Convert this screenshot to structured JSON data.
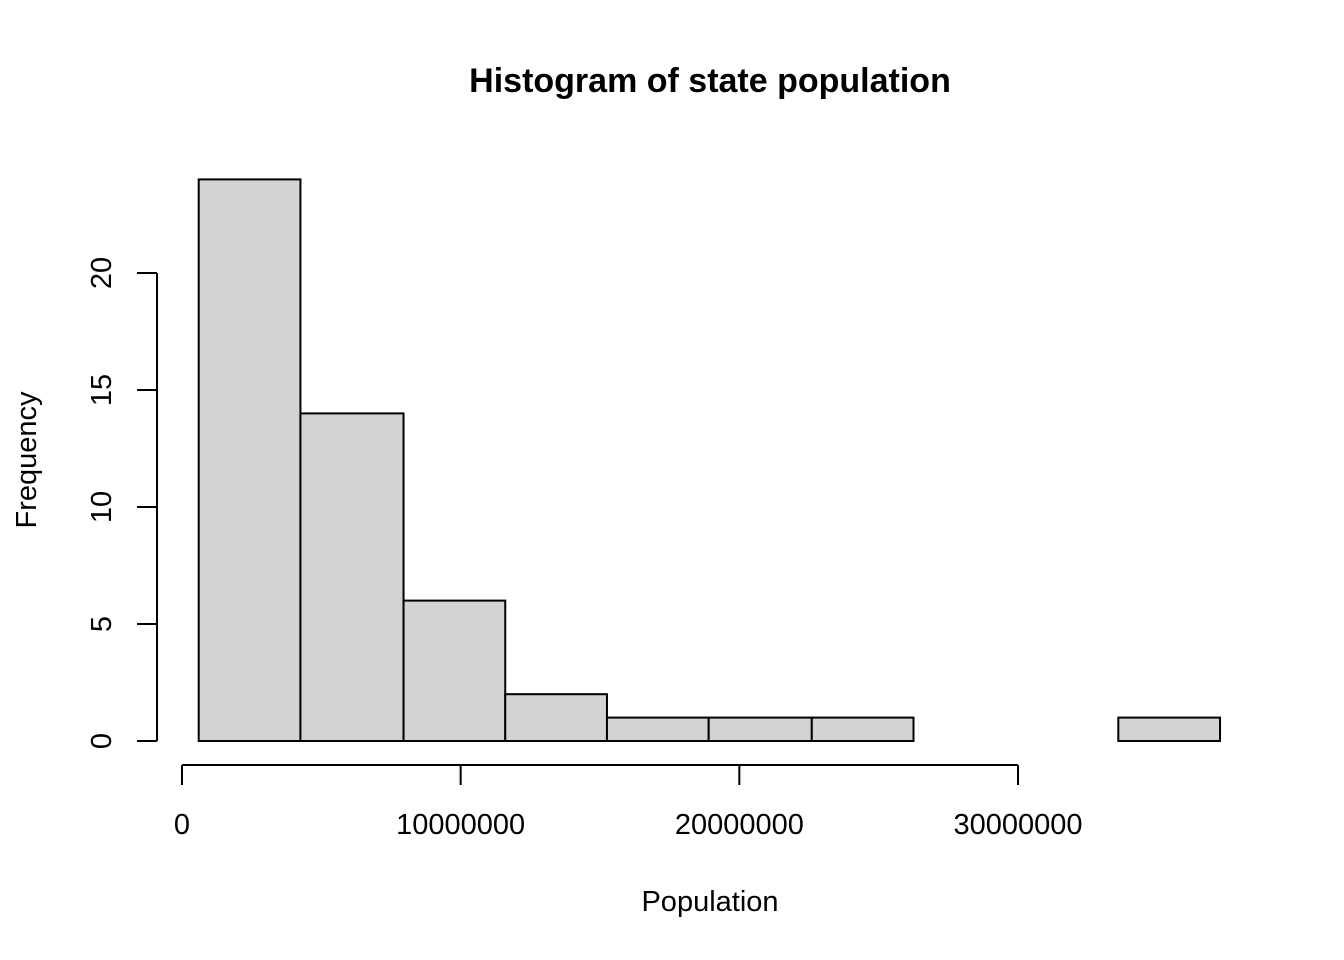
{
  "chart_data": {
    "type": "bar",
    "histogram": true,
    "title": "Histogram of state population",
    "xlabel": "Population",
    "ylabel": "Frequency",
    "bins": [
      {
        "start": 600000,
        "end": 4250000,
        "count": 24
      },
      {
        "start": 4250000,
        "end": 7950000,
        "count": 14
      },
      {
        "start": 7950000,
        "end": 11600000,
        "count": 6
      },
      {
        "start": 11600000,
        "end": 15250000,
        "count": 2
      },
      {
        "start": 15250000,
        "end": 18900000,
        "count": 1
      },
      {
        "start": 18900000,
        "end": 22600000,
        "count": 1
      },
      {
        "start": 22600000,
        "end": 26250000,
        "count": 1
      },
      {
        "start": 26250000,
        "end": 29900000,
        "count": 0
      },
      {
        "start": 29900000,
        "end": 33600000,
        "count": 0
      },
      {
        "start": 33600000,
        "end": 37250000,
        "count": 1
      }
    ],
    "xticks": [
      0,
      10000000,
      20000000,
      30000000
    ],
    "xtick_labels": [
      "0",
      "10000000",
      "20000000",
      "30000000"
    ],
    "yticks": [
      0,
      5,
      10,
      15,
      20
    ],
    "ytick_labels": [
      "0",
      "5",
      "10",
      "15",
      "20"
    ],
    "xlim": [
      -300000,
      37900000
    ],
    "ylim": [
      0,
      25
    ],
    "grid": false,
    "bar_fill": "#d3d3d3",
    "bar_stroke": "#000000"
  }
}
